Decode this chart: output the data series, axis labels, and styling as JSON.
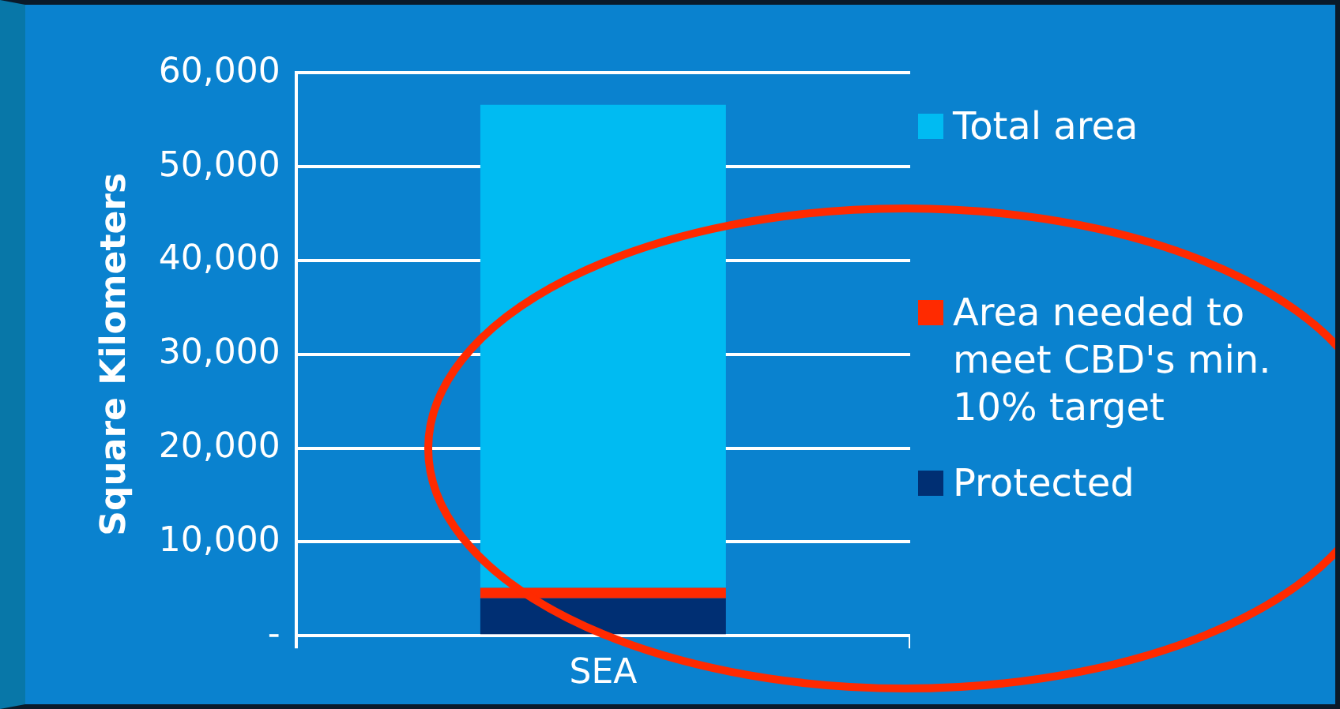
{
  "chart_data": {
    "type": "bar",
    "stacked": true,
    "categories": [
      "SEA"
    ],
    "ylabel": "Square Kilometers",
    "series": [
      {
        "name": "Protected",
        "color": "#002f73",
        "values": [
          4000
        ]
      },
      {
        "name": "Area needed to meet CBD's min. 10% target",
        "color": "#ff2a00",
        "values": [
          1100
        ]
      },
      {
        "name": "Total area",
        "color": "#00bbf2",
        "values": [
          51500
        ]
      }
    ],
    "ylim": [
      0,
      60000
    ],
    "yticks": [
      {
        "value": 0,
        "label": "-"
      },
      {
        "value": 10000,
        "label": "10,000"
      },
      {
        "value": 20000,
        "label": "20,000"
      },
      {
        "value": 30000,
        "label": "30,000"
      },
      {
        "value": 40000,
        "label": "40,000"
      },
      {
        "value": 50000,
        "label": "50,000"
      },
      {
        "value": 60000,
        "label": "60,000"
      }
    ],
    "grid": "y",
    "legend": "right"
  }
}
